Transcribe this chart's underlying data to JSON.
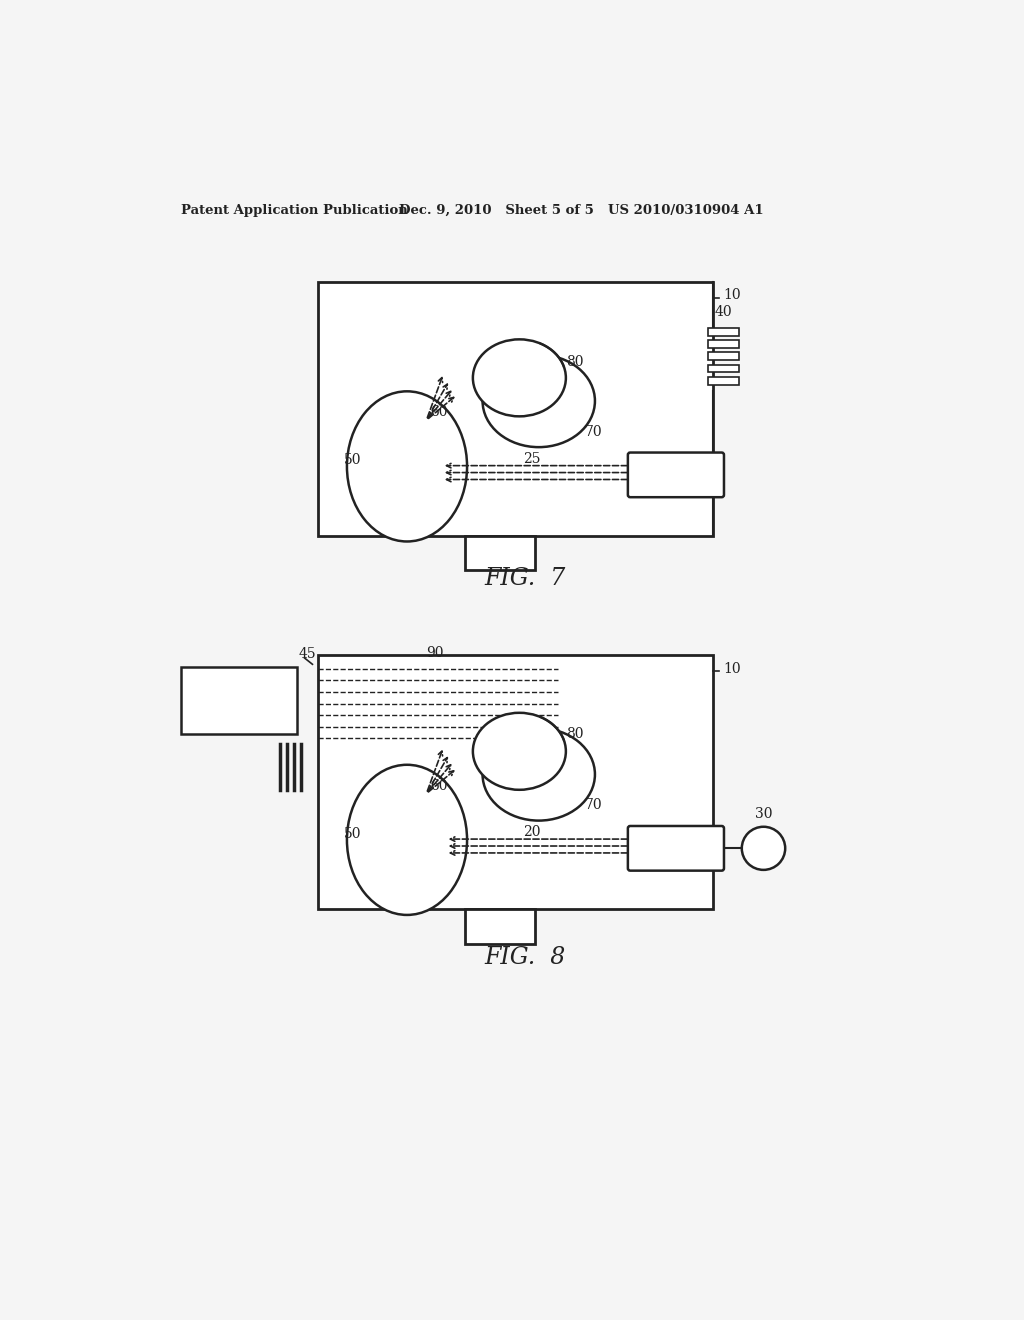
{
  "header_left": "Patent Application Publication",
  "header_mid": "Dec. 9, 2010   Sheet 5 of 5",
  "header_right": "US 2010/0310904 A1",
  "fig7_label": "FIG.  7",
  "fig8_label": "FIG.  8",
  "bg_color": "#f5f5f5",
  "line_color": "#222222"
}
